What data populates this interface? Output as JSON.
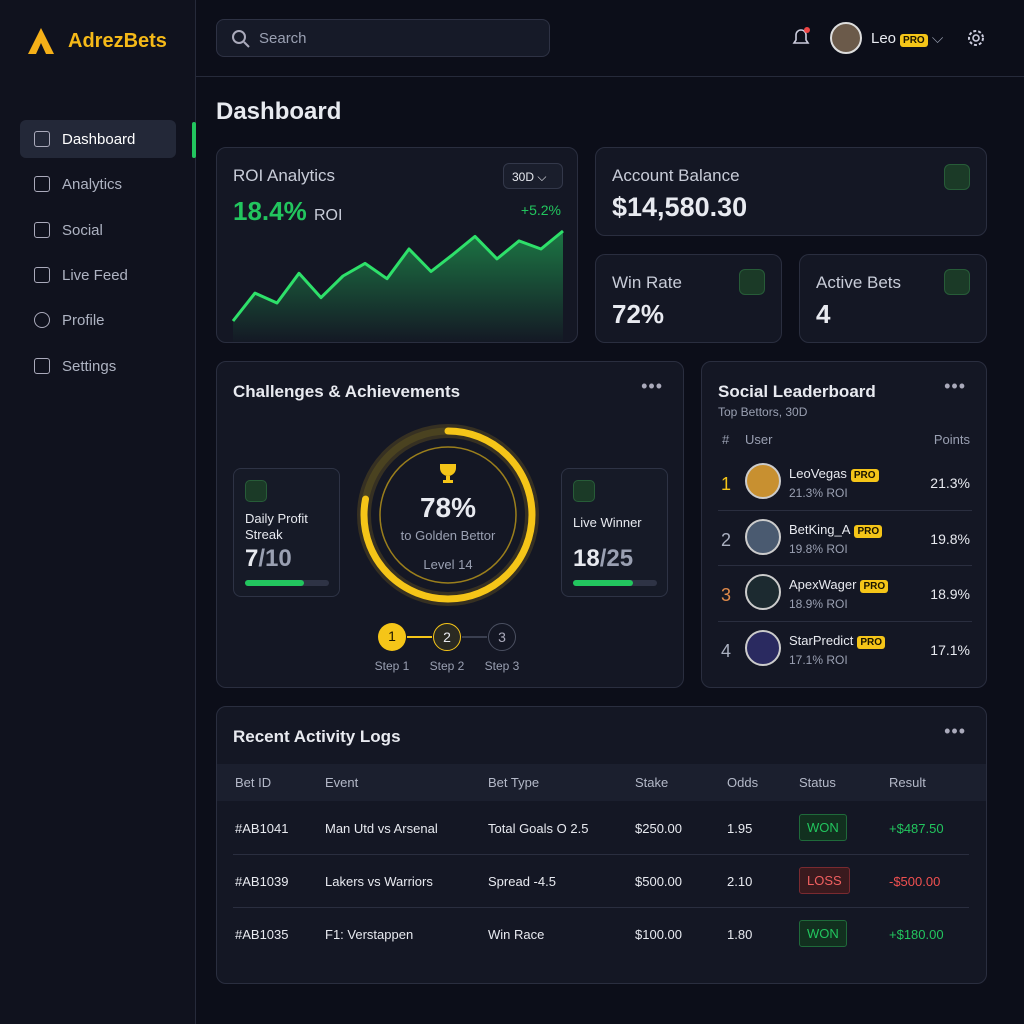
{
  "brand": "AdrezBets",
  "search": "Search",
  "user": {
    "name": "Leo",
    "badge": "PRO"
  },
  "nav": [
    "Dashboard",
    "Analytics",
    "Social",
    "Live Feed",
    "Profile",
    "Settings"
  ],
  "page_title": "Dashboard",
  "roi": {
    "title": "ROI Analytics",
    "period": "30D",
    "value": "18.4%",
    "unit": "ROI",
    "change": "+5.2%",
    "values": [
      0,
      31,
      20,
      53,
      26,
      50,
      64,
      47,
      80,
      55,
      74,
      94,
      69,
      89,
      80,
      100
    ]
  },
  "balance": {
    "label": "Account Balance",
    "value": "$14,580.30"
  },
  "win_rate": {
    "label": "Win Rate",
    "value": "72%"
  },
  "active_bets": {
    "label": "Active Bets",
    "value": "4"
  },
  "challenges": {
    "title": "Challenges & Achievements",
    "items": [
      {
        "label": "Daily Profit Streak",
        "current": "7",
        "target": "/10"
      },
      {
        "label": "Live Winner",
        "current": "18",
        "target": "/25"
      }
    ],
    "ring": {
      "percent": "78%",
      "goal": "to Golden Bettor",
      "level": "Level 14"
    },
    "steps": [
      {
        "number": "1",
        "label": "Step 1"
      },
      {
        "number": "2",
        "label": "Step 2"
      },
      {
        "number": "3",
        "label": "Step 3"
      }
    ]
  },
  "leaderboard": {
    "title": "Social Leaderboard",
    "subtitle": "Top Bettors, 30D",
    "columns": [
      "#",
      "User",
      "Points"
    ],
    "rows": [
      {
        "rank": "1",
        "name": "LeoVegas",
        "badge": "PRO",
        "roi": "21.3% ROI",
        "points": "21.3%"
      },
      {
        "rank": "2",
        "name": "BetKing_A",
        "badge": "PRO",
        "roi": "19.8% ROI",
        "points": "19.8%"
      },
      {
        "rank": "3",
        "name": "ApexWager",
        "badge": "PRO",
        "roi": "18.9% ROI",
        "points": "18.9%"
      },
      {
        "rank": "4",
        "name": "StarPredict",
        "badge": "PRO",
        "roi": "17.1% ROI",
        "points": "17.1%"
      }
    ]
  },
  "activity": {
    "title": "Recent Activity Logs",
    "columns": [
      "Bet ID",
      "Event",
      "Bet Type",
      "Stake",
      "Odds",
      "Status",
      "Result"
    ],
    "rows": [
      [
        "#AB1041",
        "Man Utd vs Arsenal",
        "Total Goals O 2.5",
        "$250.00",
        "1.95",
        "WON",
        "+$487.50"
      ],
      [
        "#AB1039",
        "Lakers vs Warriors",
        "Spread -4.5",
        "$500.00",
        "2.10",
        "LOSS",
        "-$500.00"
      ],
      [
        "#AB1035",
        "F1: Verstappen",
        "Win Race",
        "$100.00",
        "1.80",
        "WON",
        "+$180.00"
      ]
    ]
  }
}
